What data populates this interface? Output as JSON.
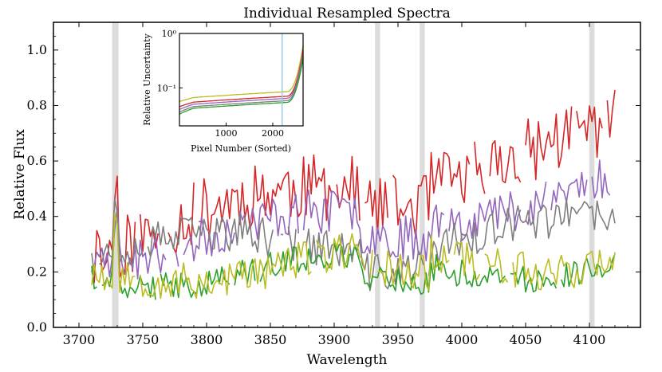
{
  "chart_data": {
    "type": "line",
    "title": "Individual Resampled Spectra",
    "xlabel": "Wavelength",
    "ylabel": "Relative Flux",
    "xlim": [
      3680,
      4140
    ],
    "ylim": [
      0.0,
      1.1
    ],
    "xticks": [
      3700,
      3750,
      3800,
      3850,
      3900,
      3950,
      4000,
      4050,
      4100
    ],
    "yticks": [
      0.0,
      0.2,
      0.4,
      0.6,
      0.8,
      1.0
    ],
    "ytick_labels": [
      "0.0",
      "0.2",
      "0.4",
      "0.6",
      "0.8",
      "1.0"
    ],
    "shaded_bands": [
      [
        3726,
        3731
      ],
      [
        3932,
        3936
      ],
      [
        3967,
        3971
      ],
      [
        4100,
        4104
      ]
    ],
    "series_wavelength_range": [
      3710,
      4120
    ],
    "series": [
      {
        "name": "spectrum-red",
        "color": "#d62728",
        "base": 0.3,
        "slope": 0.00095,
        "amp": 0.12,
        "seed": 11
      },
      {
        "name": "spectrum-purple",
        "color": "#9467bd",
        "base": 0.26,
        "slope": 0.0006,
        "amp": 0.08,
        "seed": 23
      },
      {
        "name": "spectrum-gray",
        "color": "#7f7f7f",
        "base": 0.27,
        "slope": 0.0002,
        "amp": 0.07,
        "seed": 37
      },
      {
        "name": "spectrum-green",
        "color": "#2ca02c",
        "base": 0.19,
        "slope": 0.0001,
        "amp": 0.05,
        "seed": 41
      },
      {
        "name": "spectrum-olive",
        "color": "#bcbd22",
        "base": 0.2,
        "slope": 0.00015,
        "amp": 0.07,
        "seed": 53
      }
    ],
    "inset": {
      "xlabel": "Pixel Number (Sorted)",
      "ylabel": "Relative Uncertainty",
      "xlim": [
        0,
        2650
      ],
      "ylog_range": [
        0.02,
        1.0
      ],
      "xticks": [
        1000,
        2000
      ],
      "xtick_labels": [
        "1000",
        "2000"
      ],
      "yticks": [
        1.0,
        0.1
      ],
      "ytick_labels": [
        "10⁰",
        "10⁻¹"
      ],
      "vline_x": 2200,
      "vline_color": "#9ecae1",
      "curves": [
        {
          "color": "#bcbd22",
          "start": 0.056,
          "plateau": 0.085,
          "end": 0.6
        },
        {
          "color": "#d62728",
          "start": 0.045,
          "plateau": 0.07,
          "end": 0.5
        },
        {
          "color": "#9467bd",
          "start": 0.04,
          "plateau": 0.064,
          "end": 0.45
        },
        {
          "color": "#7f7f7f",
          "start": 0.036,
          "plateau": 0.058,
          "end": 0.4
        },
        {
          "color": "#2ca02c",
          "start": 0.033,
          "plateau": 0.054,
          "end": 0.35
        }
      ]
    }
  }
}
